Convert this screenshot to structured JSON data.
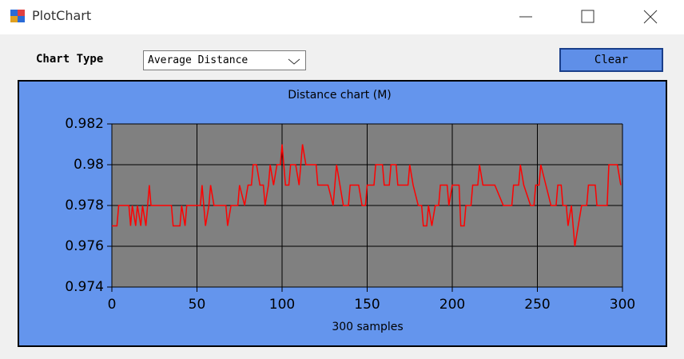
{
  "window": {
    "title": "PlotChart"
  },
  "controls": {
    "chart_type_label": "Chart Type",
    "chart_type_value": "Average Distance",
    "clear_button": "Clear"
  },
  "chart_data": {
    "type": "line",
    "title": "Distance chart (M)",
    "x_label": "300 samples",
    "color": "#ff0000",
    "grid": true,
    "xlim": [
      0,
      300
    ],
    "xticks": [
      0,
      50,
      100,
      150,
      200,
      250,
      300
    ],
    "ylim": [
      0.974,
      0.982
    ],
    "yticks": [
      0.974,
      0.976,
      0.978,
      0.98,
      0.982
    ],
    "x": [
      0,
      3,
      4,
      10,
      11,
      12,
      14,
      15,
      17,
      18,
      20,
      21,
      22,
      23,
      35,
      36,
      40,
      41,
      43,
      44,
      46,
      50,
      52,
      53,
      54,
      55,
      57,
      58,
      60,
      62,
      66,
      67,
      68,
      70,
      74,
      75,
      78,
      80,
      82,
      83,
      85,
      87,
      89,
      90,
      92,
      93,
      95,
      97,
      99,
      100,
      102,
      104,
      105,
      108,
      110,
      112,
      114,
      120,
      121,
      127,
      130,
      132,
      134,
      136,
      139,
      140,
      145,
      147,
      149,
      150,
      154,
      155,
      159,
      160,
      163,
      164,
      167,
      168,
      174,
      175,
      177,
      180,
      182,
      183,
      185,
      186,
      188,
      190,
      192,
      193,
      197,
      198,
      200,
      204,
      205,
      207,
      208,
      211,
      212,
      215,
      216,
      218,
      225,
      230,
      235,
      236,
      239,
      240,
      242,
      246,
      248,
      249,
      251,
      252,
      255,
      258,
      261,
      262,
      264,
      265,
      267,
      268,
      270,
      272,
      274,
      276,
      279,
      280,
      284,
      285,
      291,
      292,
      297,
      299
    ],
    "values": [
      0.977,
      0.977,
      0.978,
      0.978,
      0.977,
      0.978,
      0.977,
      0.978,
      0.977,
      0.978,
      0.977,
      0.978,
      0.979,
      0.978,
      0.978,
      0.977,
      0.977,
      0.978,
      0.977,
      0.978,
      0.978,
      0.978,
      0.978,
      0.979,
      0.978,
      0.977,
      0.978,
      0.979,
      0.978,
      0.978,
      0.978,
      0.978,
      0.977,
      0.978,
      0.978,
      0.979,
      0.978,
      0.979,
      0.979,
      0.98,
      0.98,
      0.979,
      0.979,
      0.978,
      0.979,
      0.98,
      0.979,
      0.98,
      0.98,
      0.981,
      0.979,
      0.979,
      0.98,
      0.98,
      0.979,
      0.981,
      0.98,
      0.98,
      0.979,
      0.979,
      0.978,
      0.98,
      0.979,
      0.978,
      0.978,
      0.979,
      0.979,
      0.978,
      0.978,
      0.979,
      0.979,
      0.98,
      0.98,
      0.979,
      0.979,
      0.98,
      0.98,
      0.979,
      0.979,
      0.98,
      0.979,
      0.978,
      0.978,
      0.977,
      0.977,
      0.978,
      0.977,
      0.978,
      0.978,
      0.979,
      0.979,
      0.978,
      0.979,
      0.979,
      0.977,
      0.977,
      0.978,
      0.978,
      0.979,
      0.979,
      0.98,
      0.979,
      0.979,
      0.978,
      0.978,
      0.979,
      0.979,
      0.98,
      0.979,
      0.978,
      0.978,
      0.979,
      0.979,
      0.98,
      0.979,
      0.978,
      0.978,
      0.979,
      0.979,
      0.978,
      0.978,
      0.977,
      0.978,
      0.976,
      0.977,
      0.978,
      0.978,
      0.979,
      0.979,
      0.978,
      0.978,
      0.98,
      0.98,
      0.979
    ]
  }
}
